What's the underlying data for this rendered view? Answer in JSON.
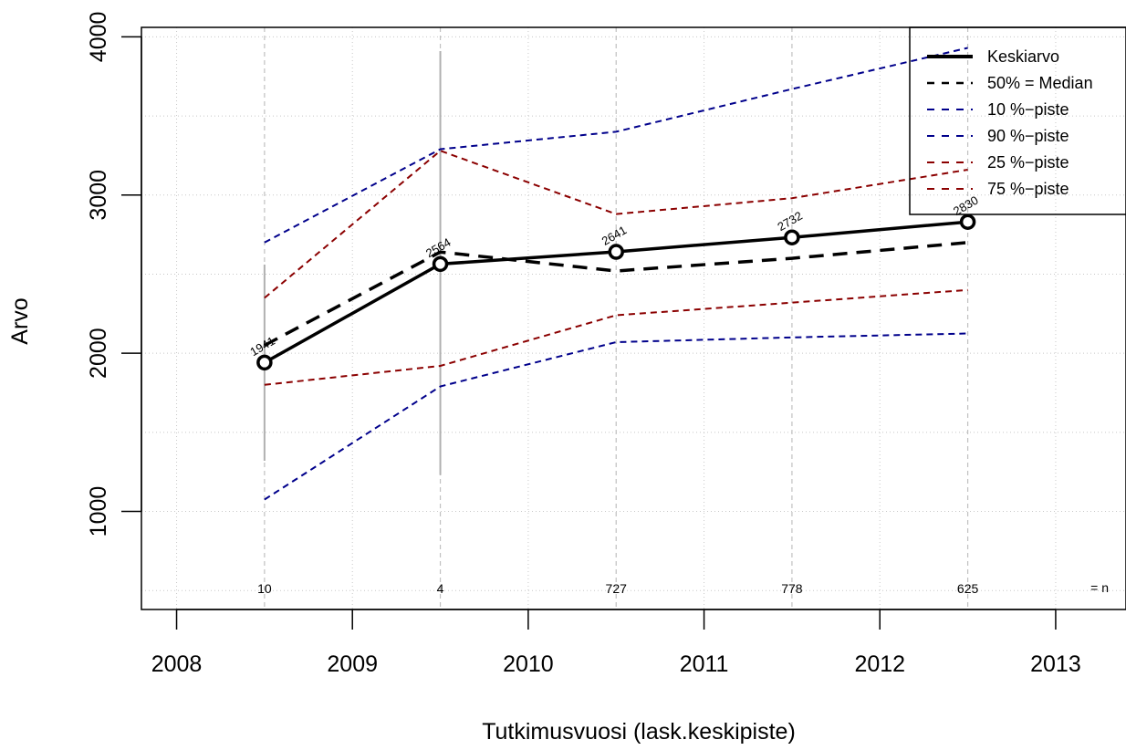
{
  "chart_data": {
    "type": "line",
    "title": "",
    "xlabel": "Tutkimusvuosi (lask.keskipiste)",
    "ylabel": "Arvo",
    "xlim": [
      2007.8,
      2013.4
    ],
    "ylim": [
      380,
      4060
    ],
    "x_ticks": [
      2008,
      2009,
      2010,
      2011,
      2012,
      2013
    ],
    "y_ticks": [
      1000,
      2000,
      3000,
      4000
    ],
    "grid": true,
    "legend_position": "top-right",
    "x": [
      2008.5,
      2009.5,
      2010.5,
      2011.5,
      2012.5
    ],
    "series": [
      {
        "name": "Keskiarvo",
        "color": "#000000",
        "style": "solid",
        "values": [
          1941,
          2564,
          2641,
          2732,
          2830
        ]
      },
      {
        "name": "50% = Median",
        "color": "#000000",
        "style": "dashed",
        "values": [
          2050,
          2640,
          2520,
          2600,
          2700
        ]
      },
      {
        "name": "10 %−piste",
        "color": "#00008b",
        "style": "dashed",
        "values": [
          1075,
          1790,
          2070,
          2100,
          2125
        ]
      },
      {
        "name": "90 %−piste",
        "color": "#00008b",
        "style": "dashed",
        "values": [
          2700,
          3290,
          3400,
          3670,
          3930
        ]
      },
      {
        "name": "25 %−piste",
        "color": "#8b0000",
        "style": "dashed",
        "values": [
          1800,
          1920,
          2240,
          2320,
          2400
        ]
      },
      {
        "name": "75 %−piste",
        "color": "#8b0000",
        "style": "dashed",
        "values": [
          2350,
          3280,
          2880,
          2980,
          3160
        ]
      }
    ],
    "error_bars": [
      {
        "x": 2008.5,
        "low": 1320,
        "high": 2560
      },
      {
        "x": 2009.5,
        "low": 1230,
        "high": 3910
      }
    ],
    "point_labels": [
      "1941",
      "2564",
      "2641",
      "2732",
      "2830"
    ],
    "n_labels": [
      "10",
      "4",
      "727",
      "778",
      "625"
    ],
    "n_suffix": "= n"
  }
}
